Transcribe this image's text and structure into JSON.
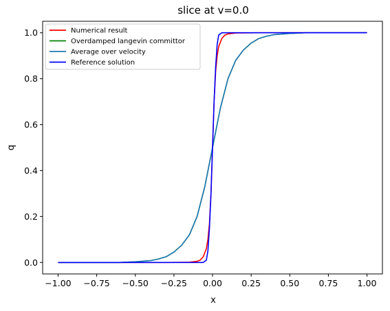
{
  "chart_data": {
    "type": "line",
    "title": "slice at v=0.0",
    "xlabel": "x",
    "ylabel": "q",
    "xlim": [
      -1.1,
      1.1
    ],
    "ylim": [
      -0.05,
      1.05
    ],
    "xticks": [
      -1.0,
      -0.75,
      -0.5,
      -0.25,
      0.0,
      0.25,
      0.5,
      0.75,
      1.0
    ],
    "xtick_labels": [
      "−1.00",
      "−0.75",
      "−0.50",
      "−0.25",
      "0.00",
      "0.25",
      "0.50",
      "0.75",
      "1.00"
    ],
    "yticks": [
      0.0,
      0.2,
      0.4,
      0.6,
      0.8,
      1.0
    ],
    "ytick_labels": [
      "0.0",
      "0.2",
      "0.4",
      "0.6",
      "0.8",
      "1.0"
    ],
    "grid": false,
    "legend_position": "top-left",
    "series": [
      {
        "name": "Numerical result",
        "color": "#ff0000",
        "x": [
          -1.0,
          -0.3,
          -0.15,
          -0.1,
          -0.08,
          -0.06,
          -0.04,
          -0.03,
          -0.02,
          -0.01,
          0.0,
          0.01,
          0.02,
          0.03,
          0.04,
          0.06,
          0.08,
          0.1,
          0.15,
          0.3,
          1.0
        ],
        "y": [
          0.0,
          0.0,
          0.001,
          0.005,
          0.01,
          0.025,
          0.06,
          0.1,
          0.17,
          0.3,
          0.5,
          0.7,
          0.83,
          0.9,
          0.94,
          0.975,
          0.99,
          0.995,
          0.999,
          1.0,
          1.0
        ]
      },
      {
        "name": "Overdamped langevin committor",
        "color": "#008000",
        "x": [
          -1.0,
          -0.6,
          -0.5,
          -0.4,
          -0.35,
          -0.3,
          -0.25,
          -0.2,
          -0.15,
          -0.1,
          -0.05,
          0.0,
          0.05,
          0.1,
          0.15,
          0.2,
          0.25,
          0.3,
          0.35,
          0.4,
          0.5,
          0.6,
          1.0
        ],
        "y": [
          0.0,
          0.0,
          0.003,
          0.008,
          0.015,
          0.025,
          0.045,
          0.075,
          0.12,
          0.2,
          0.33,
          0.5,
          0.67,
          0.8,
          0.88,
          0.925,
          0.955,
          0.975,
          0.985,
          0.992,
          0.997,
          1.0,
          1.0
        ]
      },
      {
        "name": "Average over velocity",
        "color": "#1f77b4",
        "x": [
          -1.0,
          -0.6,
          -0.5,
          -0.4,
          -0.35,
          -0.3,
          -0.25,
          -0.2,
          -0.15,
          -0.1,
          -0.05,
          0.0,
          0.05,
          0.1,
          0.15,
          0.2,
          0.25,
          0.3,
          0.35,
          0.4,
          0.5,
          0.6,
          1.0
        ],
        "y": [
          0.0,
          0.0,
          0.003,
          0.008,
          0.015,
          0.025,
          0.045,
          0.075,
          0.12,
          0.2,
          0.33,
          0.5,
          0.67,
          0.8,
          0.88,
          0.925,
          0.955,
          0.975,
          0.985,
          0.992,
          0.997,
          1.0,
          1.0
        ]
      },
      {
        "name": "Reference solution",
        "color": "#0000ff",
        "x": [
          -1.0,
          -0.06,
          -0.04,
          -0.03,
          -0.02,
          -0.01,
          0.0,
          0.01,
          0.02,
          0.03,
          0.04,
          0.06,
          1.0
        ],
        "y": [
          0.0,
          0.0,
          0.01,
          0.05,
          0.15,
          0.3,
          0.5,
          0.7,
          0.85,
          0.95,
          0.99,
          1.0,
          1.0
        ]
      }
    ]
  }
}
